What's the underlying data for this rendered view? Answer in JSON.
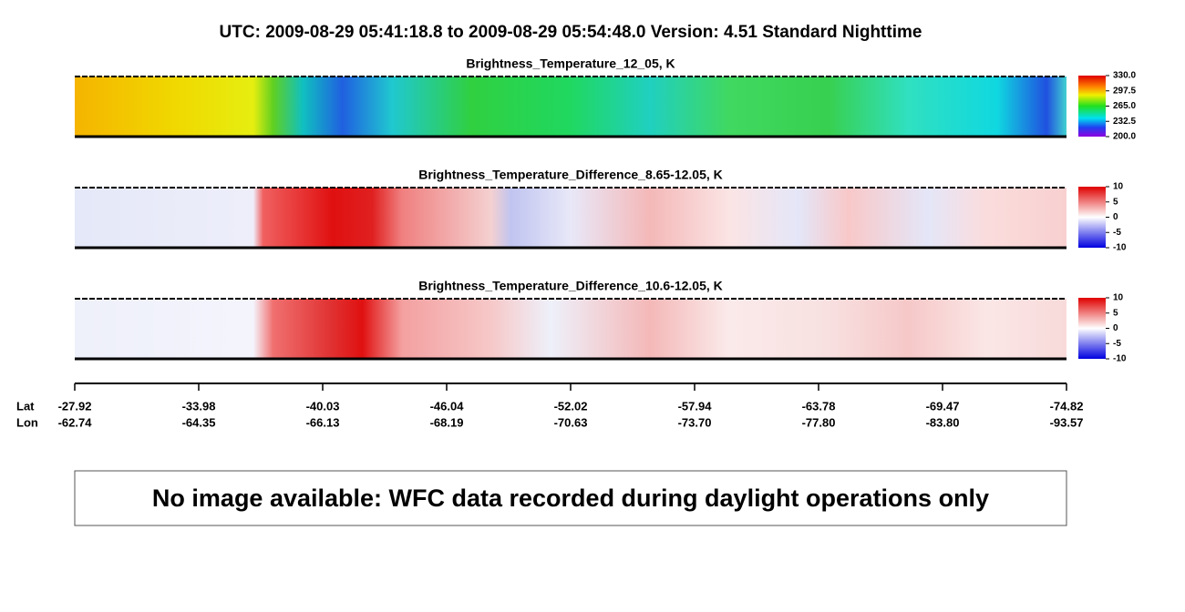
{
  "header": {
    "title": "UTC:  2009-08-29   05:41:18.8  to  2009-08-29   05:54:48.0    Version: 4.51  Standard Nighttime"
  },
  "panels": [
    {
      "title": "Brightness_Temperature_12_05, K",
      "colormap": "rainbow",
      "colorbar_ticks": [
        {
          "value": 330,
          "label": "330.0"
        },
        297.5,
        {
          "value": 265,
          "label": "265.0"
        },
        232.5,
        {
          "value": 200,
          "label": "200.0"
        }
      ]
    },
    {
      "title": "Brightness_Temperature_Difference_8.65-12.05, K",
      "colormap": "diff1",
      "colorbar_ticks": [
        10,
        5,
        0,
        -5,
        -10
      ]
    },
    {
      "title": "Brightness_Temperature_Difference_10.6-12.05, K",
      "colormap": "diff2",
      "colorbar_ticks": [
        10,
        5,
        0,
        -5,
        -10
      ]
    }
  ],
  "axis": {
    "lat_label": "Lat",
    "lon_label": "Lon",
    "lat": [
      -27.92,
      -33.98,
      -40.03,
      -46.04,
      -52.02,
      -57.94,
      -63.78,
      -69.47,
      -74.82
    ],
    "lon": [
      -62.74,
      -64.35,
      -66.13,
      -68.19,
      -70.63,
      {
        "value": -73.7,
        "label": "-73.70"
      },
      {
        "value": -77.8,
        "label": "-77.80"
      },
      {
        "value": -83.8,
        "label": "-83.80"
      },
      -93.57
    ]
  },
  "message": "No image available: WFC data recorded during daylight operations only"
}
